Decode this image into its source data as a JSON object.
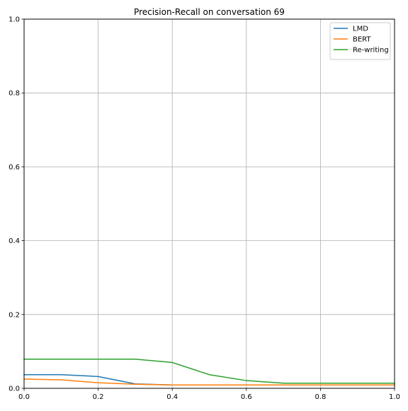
{
  "chart_data": {
    "type": "line",
    "title": "Precision-Recall on conversation 69",
    "xlabel": "",
    "ylabel": "",
    "xlim": [
      0.0,
      1.0
    ],
    "ylim": [
      0.0,
      1.0
    ],
    "xticks": [
      "0.0",
      "0.2",
      "0.4",
      "0.6",
      "0.8",
      "1.0"
    ],
    "yticks": [
      "0.0",
      "0.2",
      "0.4",
      "0.6",
      "0.8",
      "1.0"
    ],
    "grid": true,
    "legend_position": "top-right",
    "x": [
      0.0,
      0.1,
      0.2,
      0.3,
      0.4,
      0.5,
      0.6,
      0.7,
      0.8,
      0.9,
      1.0
    ],
    "series": [
      {
        "name": "LMD",
        "color": "#1f77b4",
        "values": [
          0.037,
          0.037,
          0.032,
          0.012,
          0.009,
          0.009,
          0.009,
          0.009,
          0.009,
          0.009,
          0.009
        ]
      },
      {
        "name": "BERT",
        "color": "#ff7f0e",
        "values": [
          0.025,
          0.023,
          0.015,
          0.011,
          0.009,
          0.009,
          0.009,
          0.009,
          0.009,
          0.009,
          0.009
        ]
      },
      {
        "name": "Re-writing",
        "color": "#2ca02c",
        "values": [
          0.079,
          0.079,
          0.079,
          0.079,
          0.07,
          0.037,
          0.021,
          0.014,
          0.014,
          0.014,
          0.014
        ]
      }
    ]
  }
}
